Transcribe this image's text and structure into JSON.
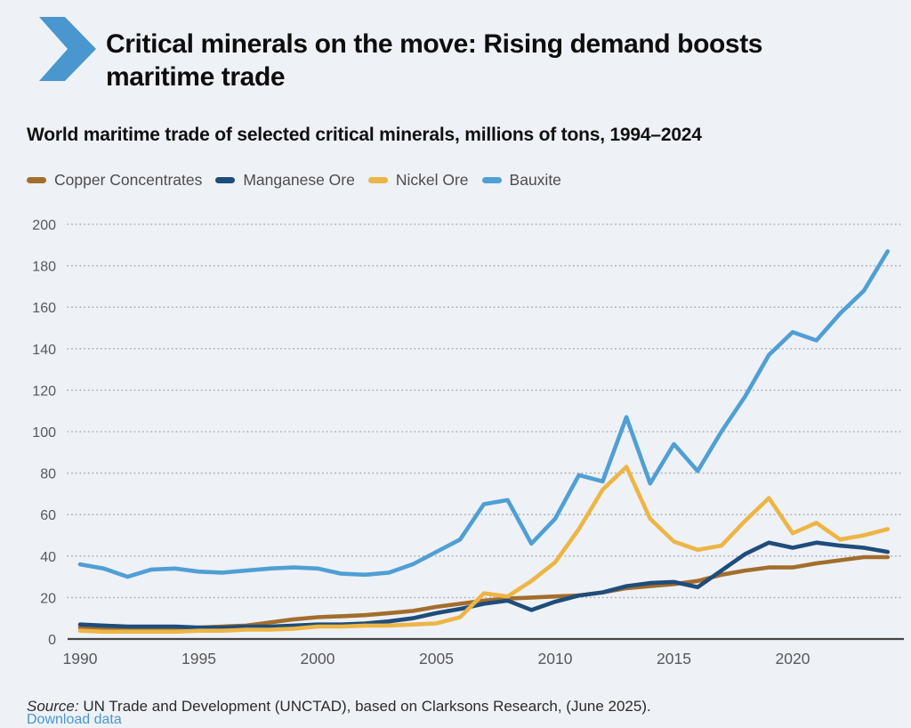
{
  "theme": {
    "background": "#eef1f6",
    "accent_blue": "#4a96ce",
    "grid_color": "#adb1b9",
    "axis_color": "#454545",
    "tick_text_color": "#57585b"
  },
  "header": {
    "title": "Critical minerals on the move: Rising demand boosts maritime trade"
  },
  "subtitle": "World maritime trade of selected critical minerals, millions of tons, 1994–2024",
  "source": {
    "label": "Source:",
    "text": " UN Trade and Development (UNCTAD), based on Clarksons Research, (June 2025)."
  },
  "footer_link": {
    "text": "Download data"
  },
  "chart_data": {
    "type": "line",
    "title": "World maritime trade of selected critical minerals, millions of tons, 1994–2024",
    "xlabel": "",
    "ylabel": "millions of tons",
    "ylim": [
      0,
      200
    ],
    "ytick_step": 20,
    "xticks": [
      1990,
      1995,
      2000,
      2005,
      2010,
      2015,
      2020
    ],
    "grid": "horizontal-dotted",
    "legend_position": "top-left",
    "x": [
      1990,
      1991,
      1992,
      1993,
      1994,
      1995,
      1996,
      1997,
      1998,
      1999,
      2000,
      2001,
      2002,
      2003,
      2004,
      2005,
      2006,
      2007,
      2008,
      2009,
      2010,
      2011,
      2012,
      2013,
      2014,
      2015,
      2016,
      2017,
      2018,
      2019,
      2020,
      2021,
      2022,
      2023,
      2024
    ],
    "series": [
      {
        "name": "Copper Concentrates",
        "color": "#a36d2d",
        "values": [
          5.5,
          5.5,
          5,
          5,
          5,
          5.5,
          6,
          6.5,
          8,
          9.5,
          10.5,
          11,
          11.5,
          12.5,
          13.5,
          15.5,
          17,
          18.5,
          19.5,
          20,
          20.5,
          21,
          22.5,
          24.5,
          25.5,
          26.5,
          28,
          31,
          33,
          34.5,
          34.5,
          36.5,
          38,
          39.5,
          39.5
        ]
      },
      {
        "name": "Manganese Ore",
        "color": "#1e4d7b",
        "values": [
          7,
          6.5,
          6,
          6,
          6,
          5.5,
          5.5,
          6,
          6,
          6.5,
          7,
          7,
          7.5,
          8.5,
          10,
          12.5,
          14.5,
          17,
          18.5,
          14,
          18,
          21,
          22.5,
          25.5,
          27,
          27.5,
          25,
          33,
          41,
          46.5,
          44,
          46.5,
          45,
          44,
          42
        ]
      },
      {
        "name": "Nickel Ore",
        "color": "#edb545",
        "values": [
          4,
          3.5,
          3.5,
          3.5,
          3.5,
          4,
          4,
          4.5,
          4.5,
          5,
          6,
          6,
          6.5,
          6.5,
          7,
          7.5,
          10.5,
          22,
          20.5,
          28,
          37,
          53,
          72,
          83,
          58,
          47,
          43,
          45,
          57,
          68,
          51,
          56,
          48,
          50,
          53
        ]
      },
      {
        "name": "Bauxite",
        "color": "#4f9fd5",
        "values": [
          36,
          34,
          30,
          33.5,
          34,
          32.5,
          32,
          33,
          34,
          34.5,
          34,
          31.5,
          31,
          32,
          36,
          42,
          48,
          65,
          67,
          46,
          58,
          79,
          76,
          107,
          75,
          94,
          81,
          100,
          117,
          137,
          148,
          144,
          157,
          168,
          187
        ]
      }
    ]
  }
}
